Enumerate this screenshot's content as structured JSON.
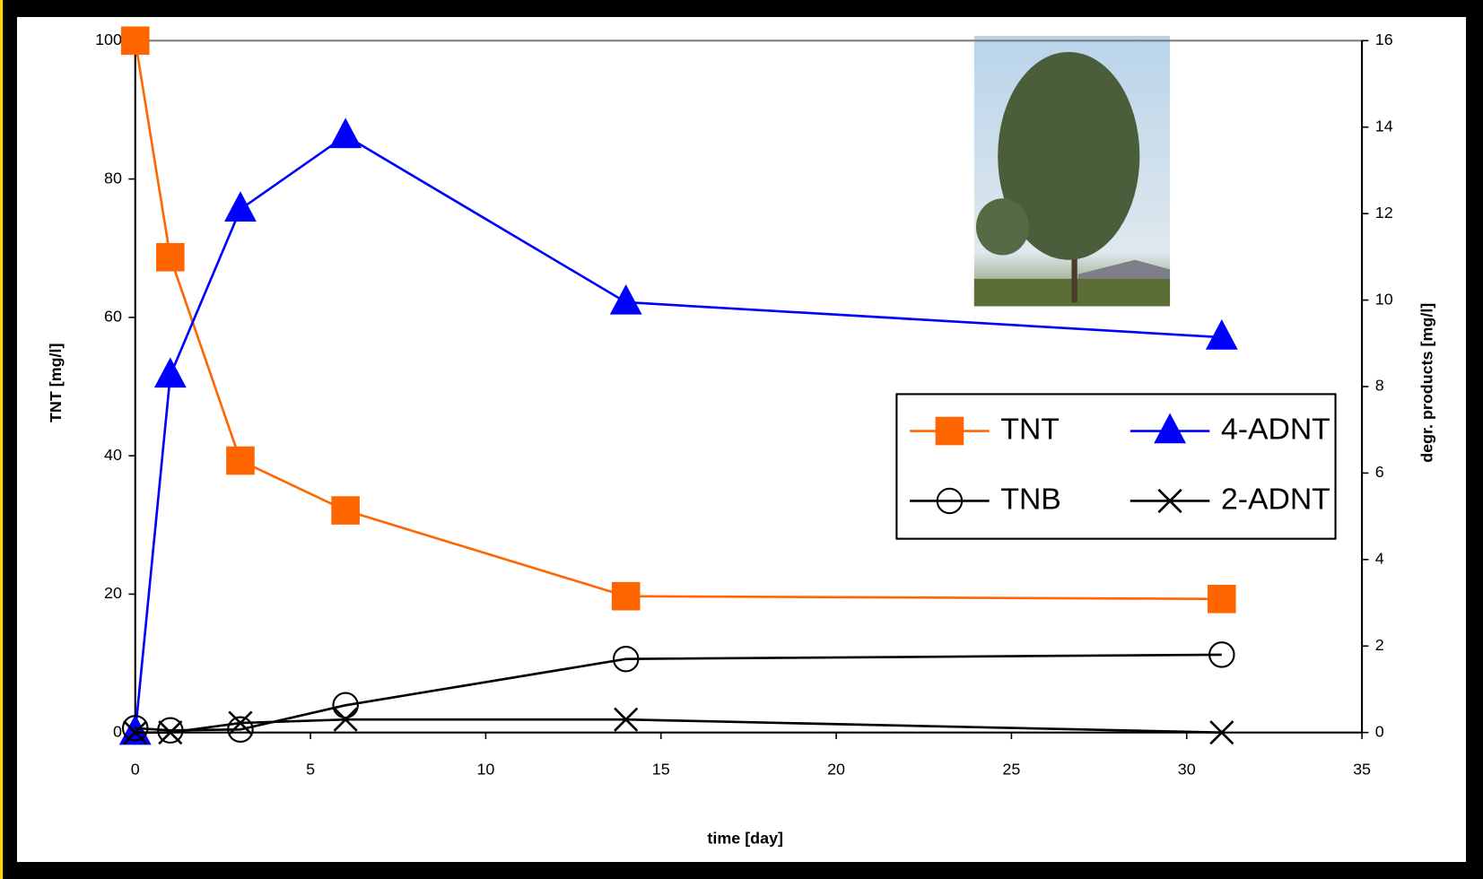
{
  "chart_data": {
    "type": "line",
    "x_label": "time [day]",
    "y_label": "TNT [mg/l]",
    "y2_label": "degr. products [mg/l]",
    "x": [
      0,
      1,
      3,
      6,
      14,
      31
    ],
    "xlim": [
      0,
      35
    ],
    "xticks": [
      0,
      5,
      10,
      15,
      20,
      25,
      30,
      35
    ],
    "ylim": [
      0,
      100
    ],
    "yticks": [
      0,
      20,
      40,
      60,
      80,
      100
    ],
    "y2lim": [
      0,
      16
    ],
    "y2ticks": [
      0,
      2,
      4,
      6,
      8,
      10,
      12,
      14,
      16
    ],
    "series": [
      {
        "name": "TNT",
        "color": "#ff6600",
        "marker": "square",
        "values": [
          100,
          68.7,
          39.3,
          32.1,
          19.7,
          19.3
        ]
      },
      {
        "name": "4-ADNT",
        "color": "#0000ff",
        "marker": "triangle",
        "axis": "y2",
        "values": [
          0,
          8.26,
          12.1,
          13.8,
          9.95,
          9.14
        ]
      },
      {
        "name": "TNB",
        "color": "#000000",
        "marker": "circle",
        "axis": "y2",
        "values": [
          0.1,
          0.05,
          0.07,
          0.63,
          1.7,
          1.8
        ]
      },
      {
        "name": "2-ADNT",
        "color": "#000000",
        "marker": "x",
        "axis": "y2",
        "values": [
          0,
          0,
          0.22,
          0.3,
          0.3,
          0
        ]
      }
    ]
  }
}
